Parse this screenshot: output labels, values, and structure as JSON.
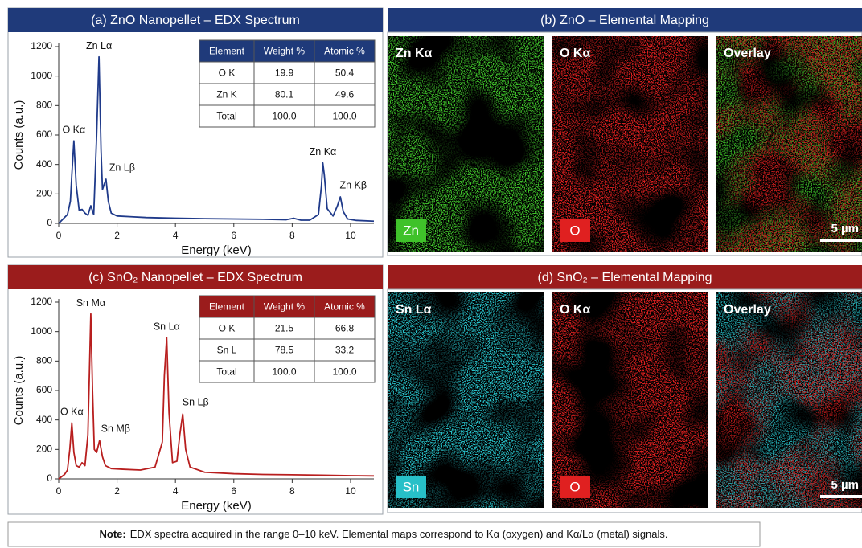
{
  "chart_data": [
    {
      "type": "line",
      "title": "(a) ZnO Nanopellet – EDX Spectrum",
      "header_color": "#1f3a7a",
      "color": "#1f3a8a",
      "x_label": "Energy (keV)",
      "y_label": "Counts (a.u.)",
      "x": [
        0,
        0.1,
        0.2,
        0.3,
        0.4,
        0.45,
        0.52,
        0.6,
        0.7,
        0.8,
        0.9,
        1.0,
        1.1,
        1.2,
        1.3,
        1.38,
        1.45,
        1.5,
        1.55,
        1.62,
        1.7,
        1.8,
        2.0,
        2.5,
        3,
        4,
        5,
        6,
        7,
        7.8,
        8.05,
        8.3,
        8.6,
        8.9,
        9.0,
        9.05,
        9.1,
        9.2,
        9.4,
        9.55,
        9.65,
        9.75,
        9.9,
        10.2,
        10.8
      ],
      "values": [
        0,
        20,
        40,
        60,
        150,
        330,
        560,
        260,
        90,
        95,
        70,
        55,
        120,
        60,
        600,
        1130,
        500,
        230,
        260,
        300,
        150,
        70,
        50,
        45,
        40,
        35,
        32,
        30,
        28,
        25,
        35,
        22,
        22,
        60,
        250,
        410,
        330,
        100,
        50,
        120,
        180,
        80,
        30,
        20,
        15
      ],
      "xlim": [
        0,
        10.8
      ],
      "ylim": [
        0,
        1200
      ],
      "xticks": [
        0,
        2,
        4,
        6,
        8,
        10
      ],
      "yticks": [
        0,
        200,
        400,
        600,
        800,
        1000,
        1200
      ],
      "annotations": [
        {
          "text": "O Kα",
          "x": 0.52
        },
        {
          "text": "Zn Lα",
          "x": 1.38
        },
        {
          "text": "Zn Lβ",
          "x": 1.62
        },
        {
          "text": "Zn Kα",
          "x": 9.05
        },
        {
          "text": "Zn Kβ",
          "x": 9.65
        }
      ],
      "table": {
        "columns": [
          "Element",
          "Weight %",
          "Atomic %"
        ],
        "rows": [
          [
            "O K",
            "19.9",
            "50.4"
          ],
          [
            "Zn K",
            "80.1",
            "49.6"
          ],
          [
            "Total",
            "100.0",
            "100.0"
          ]
        ]
      }
    },
    {
      "type": "line",
      "title": "(c) SnO₂ Nanopellet – EDX Spectrum",
      "header_color": "#9b1c1c",
      "color": "#b81e1e",
      "x_label": "Energy (keV)",
      "y_label": "Counts (a.u.)",
      "x": [
        0,
        0.1,
        0.2,
        0.3,
        0.38,
        0.45,
        0.52,
        0.6,
        0.7,
        0.8,
        0.9,
        1.0,
        1.05,
        1.1,
        1.16,
        1.22,
        1.3,
        1.4,
        1.5,
        1.6,
        1.8,
        2.2,
        2.8,
        3.3,
        3.55,
        3.62,
        3.7,
        3.78,
        3.9,
        4.05,
        4.15,
        4.25,
        4.35,
        4.5,
        5,
        6,
        7,
        8,
        9,
        10,
        10.8
      ],
      "values": [
        0,
        15,
        30,
        60,
        200,
        380,
        180,
        90,
        80,
        110,
        90,
        300,
        700,
        1120,
        600,
        200,
        180,
        260,
        150,
        90,
        70,
        65,
        60,
        80,
        250,
        700,
        960,
        450,
        110,
        120,
        300,
        440,
        200,
        80,
        45,
        35,
        30,
        28,
        25,
        22,
        20
      ],
      "xlim": [
        0,
        10.8
      ],
      "ylim": [
        0,
        1200
      ],
      "xticks": [
        0,
        2,
        4,
        6,
        8,
        10
      ],
      "yticks": [
        0,
        200,
        400,
        600,
        800,
        1000,
        1200
      ],
      "annotations": [
        {
          "text": "O Kα",
          "x": 0.45
        },
        {
          "text": "Sn Mα",
          "x": 1.1
        },
        {
          "text": "Sn Mβ",
          "x": 1.4
        },
        {
          "text": "Sn Lα",
          "x": 3.7
        },
        {
          "text": "Sn Lβ",
          "x": 4.25
        }
      ],
      "table": {
        "columns": [
          "Element",
          "Weight %",
          "Atomic %"
        ],
        "rows": [
          [
            "O K",
            "21.5",
            "66.8"
          ],
          [
            "Sn L",
            "78.5",
            "33.2"
          ],
          [
            "Total",
            "100.0",
            "100.0"
          ]
        ]
      }
    }
  ],
  "mapping": [
    {
      "title": "(b) ZnO – Elemental Mapping",
      "header_color": "#1f3a7a",
      "panels": [
        {
          "label": "Zn Kα",
          "badge": "Zn",
          "color": "#3fc22a"
        },
        {
          "label": "O Kα",
          "badge": "O",
          "color": "#e02020"
        },
        {
          "label": "Overlay",
          "scale_bar": "5 µm"
        }
      ]
    },
    {
      "title": "(d) SnO₂ – Elemental Mapping",
      "header_color": "#9b1c1c",
      "panels": [
        {
          "label": "Sn Lα",
          "badge": "Sn",
          "color": "#27c0c8"
        },
        {
          "label": "O Kα",
          "badge": "O",
          "color": "#e02020"
        },
        {
          "label": "Overlay",
          "scale_bar": "5 µm"
        }
      ]
    }
  ],
  "note": {
    "label": "Note:",
    "text": "EDX spectra acquired in the range 0–10 keV.  Elemental maps correspond to Kα (oxygen) and Kα/Lα (metal) signals."
  }
}
